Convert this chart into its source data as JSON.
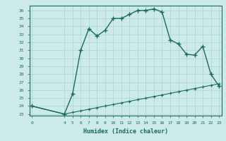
{
  "xlabel": "Humidex (Indice chaleur)",
  "background_color": "#cceae7",
  "line_color": "#1a6b5a",
  "grid_color": "#aad4d0",
  "x_main": [
    0,
    4,
    5,
    6,
    7,
    8,
    9,
    10,
    11,
    12,
    13,
    14,
    15,
    16,
    17,
    18,
    19,
    20,
    21,
    22,
    23
  ],
  "y_main": [
    24,
    23,
    25.5,
    31,
    33.7,
    32.8,
    33.5,
    35,
    35,
    35.5,
    36,
    36,
    36.2,
    35.8,
    32.3,
    31.8,
    30.5,
    30.4,
    31.5,
    28,
    26.5
  ],
  "x_flat": [
    0,
    4,
    5,
    6,
    7,
    8,
    9,
    10,
    11,
    12,
    13,
    14,
    15,
    16,
    17,
    18,
    19,
    20,
    21,
    22,
    23
  ],
  "y_flat": [
    24,
    23,
    23.2,
    23.4,
    23.6,
    23.8,
    24.0,
    24.2,
    24.4,
    24.6,
    24.8,
    25.0,
    25.2,
    25.4,
    25.6,
    25.8,
    26.0,
    26.2,
    26.4,
    26.6,
    26.8
  ],
  "ylim": [
    22.8,
    36.6
  ],
  "xlim": [
    -0.3,
    23.3
  ],
  "yticks": [
    23,
    24,
    25,
    26,
    27,
    28,
    29,
    30,
    31,
    32,
    33,
    34,
    35,
    36
  ],
  "xticks": [
    0,
    4,
    5,
    6,
    7,
    8,
    9,
    10,
    11,
    12,
    13,
    14,
    15,
    16,
    17,
    18,
    19,
    20,
    21,
    22,
    23
  ]
}
